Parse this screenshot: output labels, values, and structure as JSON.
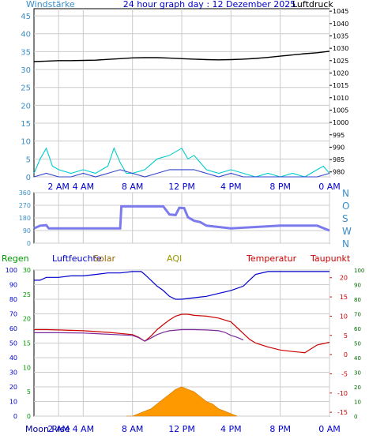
{
  "chart_data": [
    {
      "type": "line",
      "title": "24 hour graph day : 12 Dezember 2025",
      "left_axis_label": "Windstärke",
      "right_axis_label": "Luftdruck",
      "x_tick_labels": [
        "2 AM",
        "4 AM",
        "8 AM",
        "12 PM",
        "4 PM",
        "8 PM",
        "0 AM"
      ],
      "x_tick_hours": [
        2,
        4,
        8,
        12,
        16,
        20,
        24
      ],
      "left_ticks": [
        "0",
        "5",
        "10",
        "15",
        "20",
        "25",
        "30",
        "35",
        "40",
        "45"
      ],
      "right_ticks": [
        "980",
        "985",
        "990",
        "995",
        "1000",
        "1005",
        "1010",
        "1015",
        "1020",
        "1025",
        "1030",
        "1035",
        "1040",
        "1045"
      ],
      "left_ylim": [
        0,
        47
      ],
      "right_ylim": [
        978,
        1046
      ],
      "grid": true,
      "series": [
        {
          "name": "Luftdruck",
          "axis": "right",
          "color": "#000000",
          "x": [
            0,
            1,
            2,
            3,
            4,
            5,
            6,
            7,
            8,
            9,
            10,
            11,
            12,
            13,
            14,
            15,
            16,
            17,
            18,
            19,
            20,
            21,
            22,
            23,
            24
          ],
          "y": [
            1024.6,
            1024.8,
            1025.0,
            1025.0,
            1025.1,
            1025.2,
            1025.5,
            1025.8,
            1026.1,
            1026.2,
            1026.2,
            1026.0,
            1025.8,
            1025.6,
            1025.4,
            1025.3,
            1025.4,
            1025.6,
            1025.9,
            1026.3,
            1026.8,
            1027.3,
            1027.8,
            1028.2,
            1028.8
          ]
        },
        {
          "name": "",
          "axis": "left",
          "color": "#00cccc",
          "x": [
            0,
            0.5,
            1,
            1.5,
            2,
            3,
            4,
            5,
            6,
            6.5,
            7,
            7.5,
            8,
            9,
            10,
            11,
            12,
            12.5,
            13,
            13.5,
            14,
            15,
            16,
            17,
            18,
            19,
            20,
            21,
            22,
            23,
            23.5,
            24
          ],
          "y": [
            1,
            5,
            8,
            3,
            2,
            1,
            2,
            1,
            3,
            8,
            4,
            1,
            1,
            2,
            5,
            6,
            8,
            5,
            6,
            4,
            2,
            1,
            2,
            1,
            0,
            1,
            0,
            1,
            0,
            2,
            3,
            1
          ]
        },
        {
          "name": "",
          "axis": "left",
          "color": "#3344cc",
          "x": [
            0,
            1,
            2,
            3,
            4,
            5,
            6,
            7,
            8,
            9,
            10,
            11,
            12,
            13,
            14,
            15,
            16,
            17,
            18,
            19,
            20,
            21,
            22,
            23,
            24
          ],
          "y": [
            0,
            1,
            0,
            0,
            1,
            0,
            1,
            2,
            1,
            0,
            1,
            2,
            2,
            2,
            1,
            0,
            1,
            0,
            0,
            0,
            0,
            0,
            0,
            0,
            1
          ]
        }
      ]
    },
    {
      "type": "line",
      "left_ticks": [
        "0",
        "90",
        "180",
        "270",
        "360"
      ],
      "direction_labels": [
        "N",
        "W",
        "S",
        "O",
        "N"
      ],
      "ylim": [
        0,
        360
      ],
      "grid": true,
      "series": [
        {
          "name": "",
          "color": "#7b7bee",
          "x": [
            0,
            0.5,
            1,
            1.2,
            7,
            7.1,
            10.5,
            11,
            11.5,
            11.8,
            12.2,
            12.5,
            13,
            13.5,
            14,
            16,
            20,
            23,
            24
          ],
          "y": [
            105,
            125,
            128,
            105,
            105,
            262,
            262,
            205,
            200,
            252,
            250,
            185,
            160,
            150,
            125,
            105,
            125,
            125,
            90
          ]
        }
      ]
    },
    {
      "type": "line",
      "header_labels": {
        "regen": "Regen",
        "luftfeuchte": "Luftfeuchte",
        "solar": "Solar",
        "aqi": "AQI",
        "temperatur": "Temperatur",
        "taupunkt": "Taupunkt"
      },
      "footer_label": "Moon Rise",
      "x_tick_labels": [
        "2 AM",
        "4 AM",
        "8 AM",
        "12 PM",
        "4 PM",
        "8 PM",
        "0 AM"
      ],
      "x_tick_hours": [
        2,
        4,
        8,
        12,
        16,
        20,
        24
      ],
      "hum_ticks": [
        "0",
        "10",
        "20",
        "30",
        "40",
        "50",
        "60",
        "70",
        "80",
        "90",
        "100"
      ],
      "rain_ticks": [
        "0",
        "5",
        "10",
        "15",
        "20",
        "25",
        "30"
      ],
      "temp_ticks": [
        "-15",
        "-10",
        "-5",
        "0",
        "5",
        "10",
        "15",
        "20"
      ],
      "far_right_ticks": [
        "0",
        "10",
        "20",
        "30",
        "40",
        "50",
        "60",
        "70",
        "80",
        "90",
        "100"
      ],
      "temp_ylim": [
        -16,
        22
      ],
      "series": [
        {
          "name": "Luftfeuchte",
          "axis": "humidity",
          "color": "#0000cc",
          "x": [
            0,
            0.5,
            1,
            2,
            3,
            4,
            5,
            6,
            7,
            8,
            8.7,
            9,
            9.5,
            10,
            10.5,
            11,
            11.5,
            12,
            13,
            14,
            15,
            16,
            17,
            17.5,
            18,
            19,
            20,
            21,
            22,
            23,
            24
          ],
          "y": [
            93,
            93,
            95,
            95,
            96,
            96,
            97,
            98,
            98,
            99,
            99,
            97,
            93,
            89,
            86,
            82,
            80,
            80,
            81,
            82,
            84,
            86,
            89,
            93,
            97,
            99,
            99,
            99,
            99,
            99,
            99
          ]
        },
        {
          "name": "Temperatur",
          "axis": "temp",
          "color": "#cc0000",
          "x": [
            0,
            1,
            2,
            3,
            4,
            5,
            6,
            7,
            8,
            8.5,
            9,
            9.5,
            10,
            10.5,
            11,
            11.5,
            12,
            12.5,
            13,
            14,
            15,
            16,
            16.5,
            17,
            17.5,
            18,
            19,
            20,
            21,
            22,
            23,
            24
          ],
          "y": [
            6.5,
            6.5,
            6.4,
            6.3,
            6.2,
            6.0,
            5.8,
            5.5,
            5.2,
            4.5,
            3.5,
            4.8,
            6.5,
            7.8,
            9.0,
            10.0,
            10.5,
            10.5,
            10.2,
            10.0,
            9.5,
            8.5,
            7.0,
            5.5,
            4.0,
            3.0,
            2.0,
            1.2,
            0.8,
            0.5,
            2.5,
            3.2
          ]
        },
        {
          "name": "Taupunkt",
          "axis": "temp",
          "color": "#7a2a9a",
          "x": [
            0,
            2,
            4,
            6,
            8,
            8.5,
            9,
            9.5,
            10,
            10.5,
            11,
            12,
            13,
            14,
            15,
            15.5,
            16,
            16.5,
            17
          ],
          "y": [
            5.7,
            5.7,
            5.6,
            5.3,
            5.0,
            4.4,
            3.5,
            4.3,
            5.2,
            5.8,
            6.2,
            6.5,
            6.5,
            6.4,
            6.2,
            5.8,
            5.0,
            4.5,
            3.8
          ]
        },
        {
          "name": "Solar",
          "axis": "solar",
          "color": "#ff9900",
          "x": [
            7.5,
            8,
            9,
            9.5,
            10,
            10.5,
            11,
            11.5,
            12,
            12.5,
            13,
            13.5,
            14,
            14.5,
            15,
            15.5,
            16,
            16.5
          ],
          "y": [
            0,
            0,
            2,
            3,
            5,
            7,
            9,
            11,
            12,
            11,
            10,
            8,
            6,
            5,
            3,
            2,
            1,
            0
          ]
        }
      ]
    }
  ],
  "colors": {
    "top_left_axis": "#3a8ec8",
    "top_right_axis": "#000000",
    "wind_dir": "#7b7bee",
    "humidity": "#0000cc",
    "temp": "#cc0000",
    "dew": "#7a2a9a",
    "rain": "#009900",
    "solar": "#ff9900",
    "aqi": "#999900",
    "footer": "#000099",
    "grid": "#cccccc"
  }
}
